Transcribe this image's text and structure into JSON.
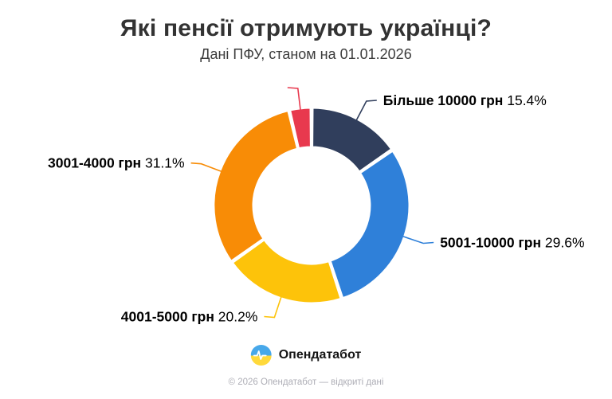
{
  "header": {
    "title": "Які пенсії отримують українці?",
    "subtitle": "Дані ПФУ, станом на 01.01.2026"
  },
  "chart_data": {
    "type": "pie",
    "variant": "donut",
    "title": "Які пенсії отримують українці?",
    "subtitle": "Дані ПФУ, станом на 01.01.2026",
    "unit": "%",
    "orientation": "starts at 12 o'clock, clockwise",
    "legend_position": "outside labels with leader lines",
    "segments": [
      {
        "label": "Більше 10000 грн",
        "value": 15.4,
        "pct_text": "15.4%",
        "color": "#303e5c",
        "show_label": true
      },
      {
        "label": "5001-10000 грн",
        "value": 29.6,
        "pct_text": "29.6%",
        "color": "#2f80d9",
        "show_label": true
      },
      {
        "label": "4001-5000 грн",
        "value": 20.2,
        "pct_text": "20.2%",
        "color": "#fdc30a",
        "show_label": true
      },
      {
        "label": "3001-4000 грн",
        "value": 31.1,
        "pct_text": "31.1%",
        "color": "#f88c06",
        "show_label": true
      },
      {
        "label": "",
        "value": 3.7,
        "pct_text": "",
        "color": "#e8394e",
        "show_label": false
      }
    ]
  },
  "footer": {
    "brand": "Опендатабот",
    "copyright": "© 2026 Опендатабот — відкриті дані",
    "logo": {
      "icon": "ukraine-pulse-logo",
      "top_color": "#47a8ea",
      "bottom_color": "#ffd93b",
      "pulse_color": "#ffffff"
    }
  },
  "style_colors": {
    "title": "#333333",
    "labels": "#000000",
    "copyright": "#aeaeb6",
    "background": "#ffffff"
  }
}
